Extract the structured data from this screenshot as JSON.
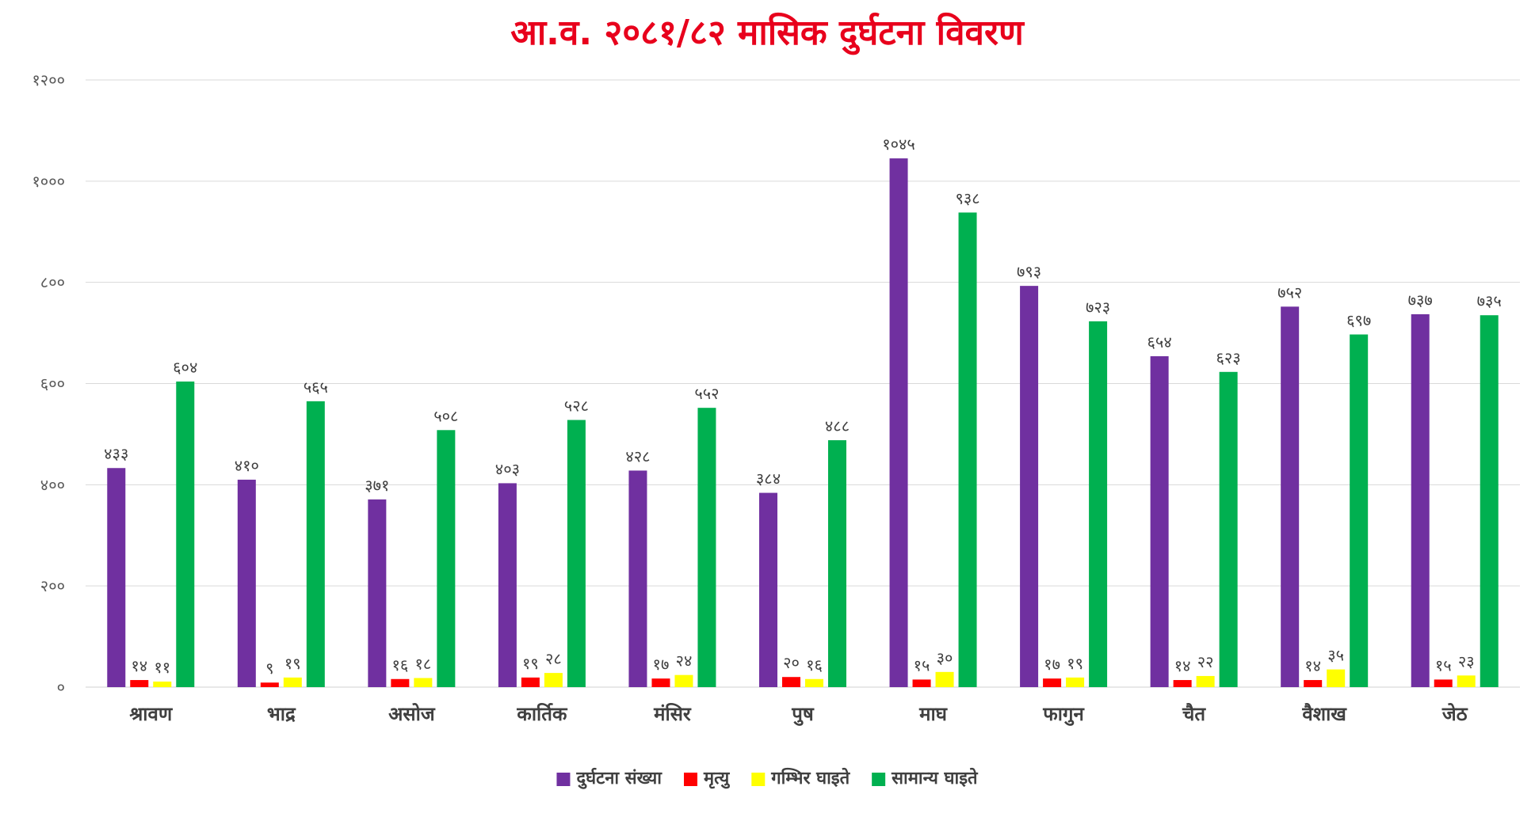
{
  "chart_data": {
    "type": "bar",
    "title": "आ.व. २०८१/८२ मासिक दुर्घटना विवरण",
    "title_color": "#e8001c",
    "categories": [
      "श्रावण",
      "भाद्र",
      "असोज",
      "कार्तिक",
      "मंसिर",
      "पुष",
      "माघ",
      "फागुन",
      "चैत",
      "वैशाख",
      "जेठ"
    ],
    "ylim": [
      0,
      1200
    ],
    "yticks": [
      0,
      200,
      400,
      600,
      800,
      1000,
      1200
    ],
    "ytick_labels": [
      "०",
      "२००",
      "४००",
      "६००",
      "८००",
      "१०००",
      "१२००"
    ],
    "grid": true,
    "legend_position": "bottom",
    "series": [
      {
        "name": "दुर्घटना संख्या",
        "color": "#7030a0",
        "values": [
          433,
          410,
          371,
          403,
          428,
          384,
          1045,
          793,
          654,
          752,
          737
        ],
        "labels": [
          "४३३",
          "४१०",
          "३७१",
          "४०३",
          "४२८",
          "३८४",
          "१०४५",
          "७९३",
          "६५४",
          "७५२",
          "७३७"
        ]
      },
      {
        "name": "मृत्यु",
        "color": "#ff0000",
        "values": [
          14,
          9,
          16,
          19,
          17,
          20,
          15,
          17,
          14,
          14,
          15
        ],
        "labels": [
          "१४",
          "९",
          "१६",
          "१९",
          "१७",
          "२०",
          "१५",
          "१७",
          "१४",
          "१४",
          "१५"
        ]
      },
      {
        "name": "गम्भिर घाइते",
        "color": "#ffff00",
        "values": [
          11,
          19,
          18,
          28,
          24,
          16,
          30,
          19,
          22,
          35,
          23
        ],
        "labels": [
          "११",
          "१९",
          "१८",
          "२८",
          "२४",
          "१६",
          "३०",
          "१९",
          "२२",
          "३५",
          "२३"
        ]
      },
      {
        "name": "सामान्य घाइते",
        "color": "#00b050",
        "values": [
          604,
          565,
          508,
          528,
          552,
          488,
          938,
          723,
          623,
          697,
          735
        ],
        "labels": [
          "६०४",
          "५६५",
          "५०८",
          "५२८",
          "५५२",
          "४८८",
          "९३८",
          "७२३",
          "६२३",
          "६९७",
          "७३५"
        ]
      }
    ]
  }
}
